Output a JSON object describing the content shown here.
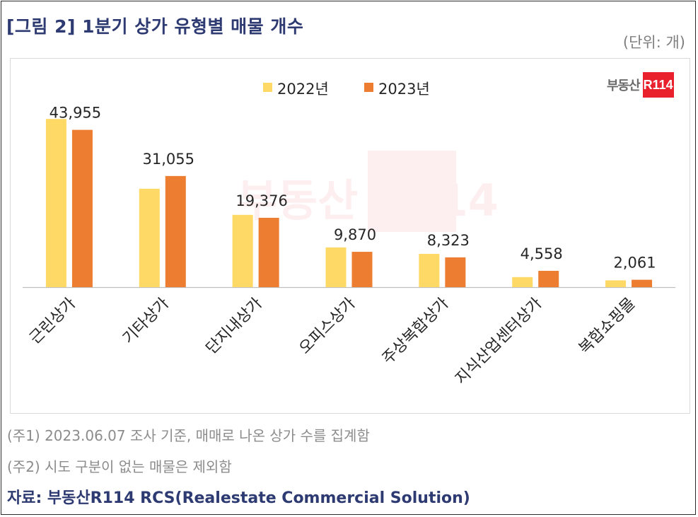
{
  "title": "[그림 2] 1분기 상가 유형별 매물 개수",
  "unit": "(단위: 개)",
  "logo": {
    "text": "부동산",
    "mark": "R114"
  },
  "watermark": "부동산 R114",
  "colors": {
    "series_2022": "#FFD966",
    "series_2023": "#ED7D31",
    "title": "#2E3B73"
  },
  "chart_data": {
    "type": "bar",
    "categories": [
      "근린상가",
      "기타상가",
      "단지내상가",
      "오피스상가",
      "주상복합상가",
      "지식산업센터상가",
      "복합쇼핑몰"
    ],
    "series": [
      {
        "name": "2022년",
        "values": [
          47000,
          27500,
          20200,
          11100,
          9300,
          2800,
          1900
        ]
      },
      {
        "name": "2023년",
        "values": [
          43955,
          31055,
          19376,
          9870,
          8323,
          4558,
          2061
        ]
      }
    ],
    "data_labels": [
      "43,955",
      "31,055",
      "19,376",
      "9,870",
      "8,323",
      "4,558",
      "2,061"
    ],
    "ylim": [
      0,
      50000
    ],
    "grid": false,
    "legend": "top-center"
  },
  "notes": [
    "(주1) 2023.06.07 조사 기준, 매매로 나온 상가 수를 집계함",
    "(주2) 시도 구분이 없는 매물은 제외함"
  ],
  "source": "자료: 부동산R114 RCS(Realestate Commercial Solution)"
}
